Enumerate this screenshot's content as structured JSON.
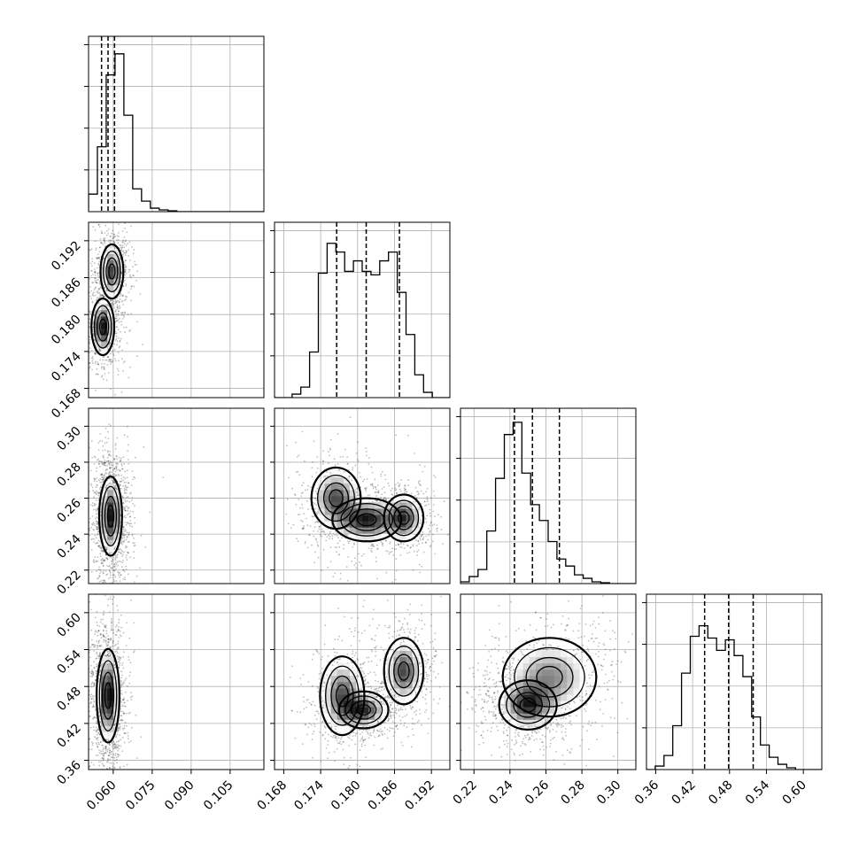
{
  "chart_data": {
    "type": "corner",
    "title": "",
    "grid": true,
    "parameters": [
      {
        "ticks": [
          0.06,
          0.075,
          0.09,
          0.105
        ],
        "tick_labels": [
          "0.060",
          "0.075",
          "0.090",
          "0.105"
        ],
        "range": [
          0.0505,
          0.118
        ],
        "quantiles": [
          0.0555,
          0.058,
          0.0605
        ],
        "hist_edges_start": 0.0505,
        "hist_bin_width": 0.0034,
        "hist": [
          0.1,
          0.37,
          0.78,
          0.9,
          0.55,
          0.13,
          0.06,
          0.02,
          0.01,
          0.005,
          0,
          0,
          0,
          0,
          0,
          0,
          0,
          0,
          0,
          0
        ],
        "hist_ylim": [
          0,
          1.0
        ]
      },
      {
        "ticks": [
          0.168,
          0.174,
          0.18,
          0.186,
          0.192
        ],
        "tick_labels": [
          "0.168",
          "0.174",
          "0.180",
          "0.186",
          "0.192"
        ],
        "range": [
          0.1665,
          0.195
        ],
        "quantiles": [
          0.1766,
          0.1814,
          0.1868
        ],
        "hist_edges_start": 0.1665,
        "hist_bin_width": 0.001425,
        "hist": [
          0,
          0,
          0.02,
          0.06,
          0.26,
          0.71,
          0.88,
          0.83,
          0.72,
          0.78,
          0.72,
          0.7,
          0.78,
          0.83,
          0.6,
          0.36,
          0.13,
          0.03,
          0,
          0
        ],
        "hist_ylim": [
          0,
          1.0
        ]
      },
      {
        "ticks": [
          0.22,
          0.24,
          0.26,
          0.28,
          0.3
        ],
        "tick_labels": [
          "0.22",
          "0.24",
          "0.26",
          "0.28",
          "0.30"
        ],
        "range": [
          0.2125,
          0.31
        ],
        "quantiles": [
          0.2425,
          0.2525,
          0.2675
        ],
        "hist_edges_start": 0.2125,
        "hist_bin_width": 0.004875,
        "hist": [
          0.01,
          0.04,
          0.08,
          0.3,
          0.6,
          0.85,
          0.92,
          0.63,
          0.45,
          0.36,
          0.24,
          0.14,
          0.1,
          0.05,
          0.03,
          0.01,
          0.005,
          0,
          0,
          0
        ],
        "hist_ylim": [
          0,
          1.0
        ]
      },
      {
        "ticks": [
          0.36,
          0.42,
          0.48,
          0.54,
          0.6
        ],
        "tick_labels": [
          "0.36",
          "0.42",
          "0.48",
          "0.54",
          "0.60"
        ],
        "range": [
          0.345,
          0.63
        ],
        "quantiles": [
          0.4395,
          0.4785,
          0.5185
        ],
        "hist_edges_start": 0.345,
        "hist_bin_width": 0.01425,
        "hist": [
          0,
          0.02,
          0.08,
          0.25,
          0.55,
          0.76,
          0.82,
          0.75,
          0.68,
          0.74,
          0.65,
          0.53,
          0.3,
          0.14,
          0.07,
          0.03,
          0.01,
          0,
          0,
          0
        ],
        "hist_ylim": [
          0,
          1.0
        ]
      }
    ],
    "density_modes": {
      "1_0": [
        {
          "x": 0.056,
          "y": 0.178,
          "sx": 0.0022,
          "sy": 0.0023,
          "w": 1.0
        },
        {
          "x": 0.0595,
          "y": 0.187,
          "sx": 0.0022,
          "sy": 0.0022,
          "w": 0.85
        }
      ],
      "2_0": [
        {
          "x": 0.059,
          "y": 0.25,
          "sx": 0.0022,
          "sy": 0.011,
          "w": 1.0
        }
      ],
      "2_1": [
        {
          "x": 0.1765,
          "y": 0.26,
          "sx": 0.002,
          "sy": 0.0085,
          "w": 0.8
        },
        {
          "x": 0.1815,
          "y": 0.248,
          "sx": 0.0028,
          "sy": 0.006,
          "w": 1.0
        },
        {
          "x": 0.1875,
          "y": 0.249,
          "sx": 0.0016,
          "sy": 0.0065,
          "w": 0.85
        }
      ],
      "3_0": [
        {
          "x": 0.058,
          "y": 0.465,
          "sx": 0.0022,
          "sy": 0.038,
          "w": 1.0
        }
      ],
      "3_1": [
        {
          "x": 0.1775,
          "y": 0.465,
          "sx": 0.0018,
          "sy": 0.032,
          "w": 0.9
        },
        {
          "x": 0.181,
          "y": 0.442,
          "sx": 0.002,
          "sy": 0.015,
          "w": 1.0
        },
        {
          "x": 0.1875,
          "y": 0.505,
          "sx": 0.0016,
          "sy": 0.027,
          "w": 0.95
        }
      ],
      "3_2": [
        {
          "x": 0.25,
          "y": 0.45,
          "sx": 0.008,
          "sy": 0.02,
          "w": 1.0
        },
        {
          "x": 0.262,
          "y": 0.495,
          "sx": 0.013,
          "sy": 0.032,
          "w": 0.7
        }
      ]
    }
  }
}
